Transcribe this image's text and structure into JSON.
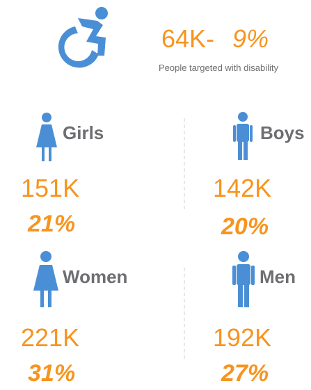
{
  "header": {
    "value": "64K-",
    "percent": "9%",
    "caption": "People targeted with disability"
  },
  "groups": [
    {
      "label": "Girls",
      "count": "151K",
      "percent": "21%"
    },
    {
      "label": "Boys",
      "count": "142K",
      "percent": "20%"
    },
    {
      "label": "Women",
      "count": "221K",
      "percent": "31%"
    },
    {
      "label": "Men",
      "count": "192K",
      "percent": "27%"
    }
  ]
}
